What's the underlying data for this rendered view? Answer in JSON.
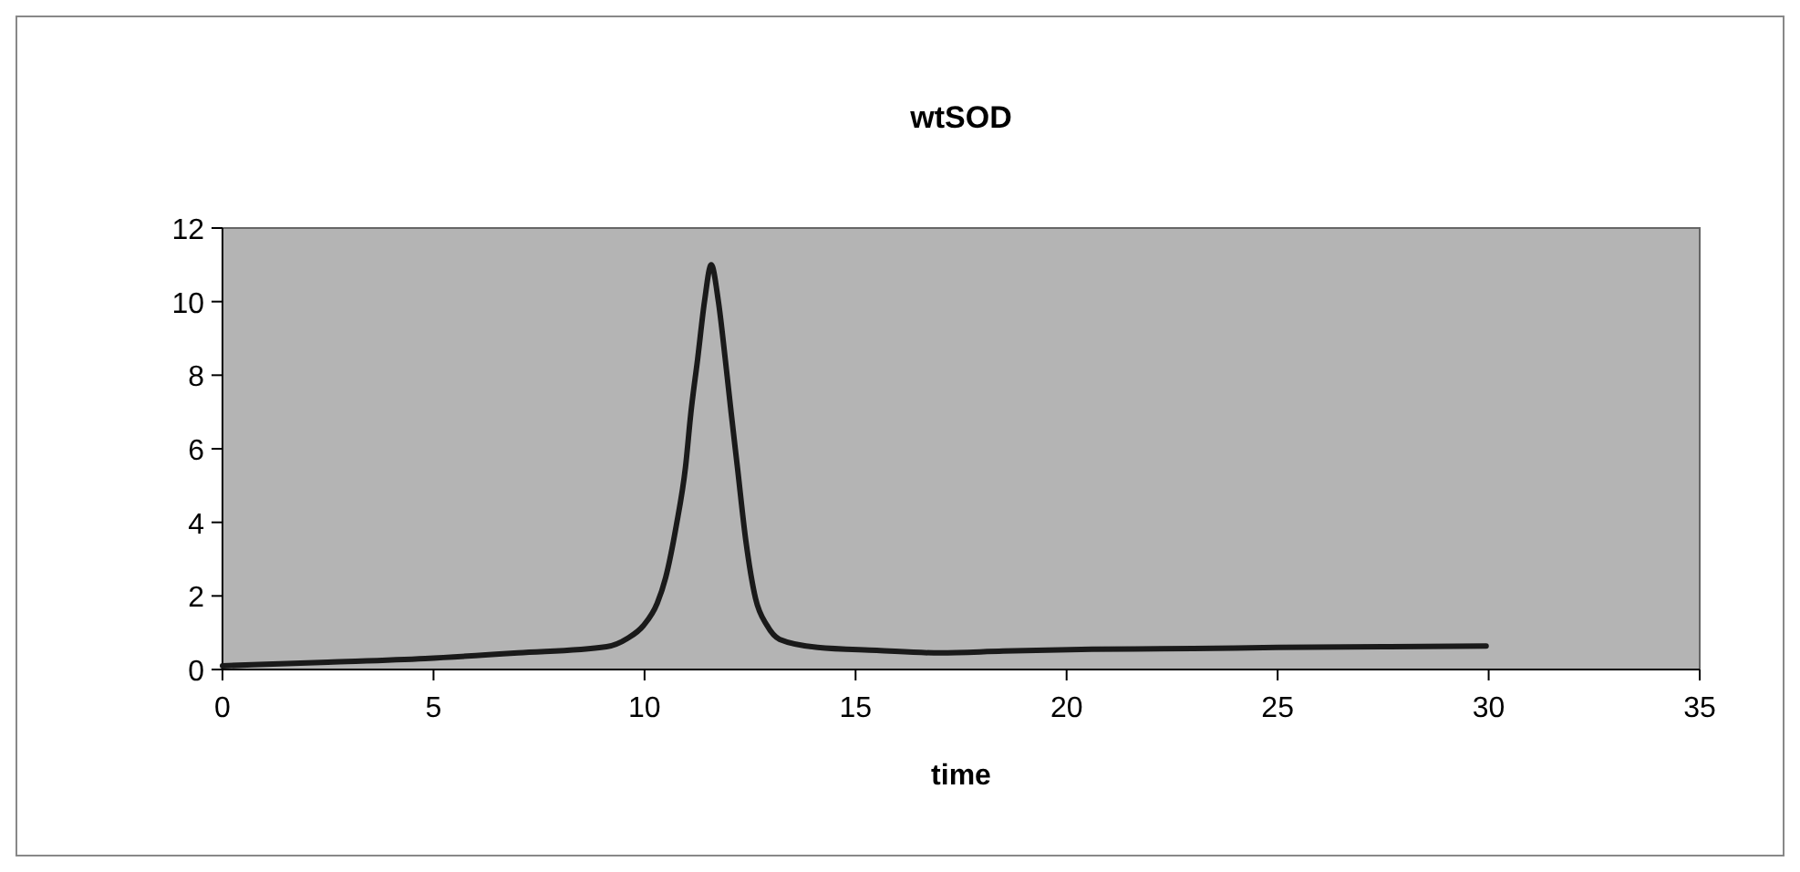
{
  "chart_data": {
    "type": "line",
    "title": "wtSOD",
    "xlabel": "time",
    "xlim": [
      0,
      35
    ],
    "xticks": [
      0,
      5,
      10,
      15,
      20,
      25,
      30,
      35
    ],
    "ylim": [
      0,
      12
    ],
    "yticks": [
      0,
      2,
      4,
      6,
      8,
      10,
      12
    ],
    "grid": false,
    "marker": "none",
    "series": [
      {
        "color": "#1a1a1a",
        "x": [
          0,
          2.5,
          4.8,
          7,
          9.1,
          9.6,
          9.97,
          10.3,
          10.5,
          10.75,
          10.97,
          11.1,
          11.26,
          11.42,
          11.58,
          11.75,
          11.91,
          12.05,
          12.2,
          12.4,
          12.63,
          12.9,
          13.2,
          14.1,
          15.5,
          17,
          18.5,
          20.6,
          23,
          25,
          27.5,
          29.94
        ],
        "values": [
          0.1,
          0.2,
          0.3,
          0.45,
          0.62,
          0.85,
          1.19,
          1.8,
          2.5,
          3.9,
          5.5,
          7,
          8.46,
          10,
          11,
          10,
          8.46,
          7,
          5.5,
          3.5,
          1.93,
          1.2,
          0.82,
          0.6,
          0.52,
          0.45,
          0.5,
          0.55,
          0.57,
          0.6,
          0.62,
          0.64
        ]
      }
    ]
  }
}
